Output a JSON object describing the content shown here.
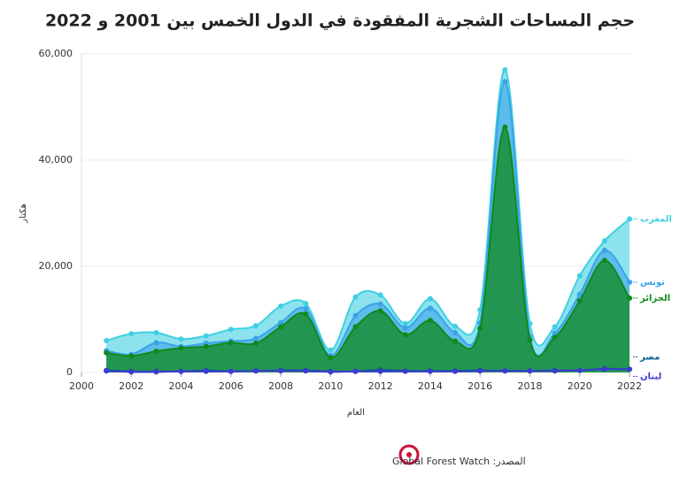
{
  "chart_data": {
    "type": "area",
    "title": "حجم المساحات الشجرية المفقودة في الدول الخمس بين 2001 و 2022",
    "y_label": "هكتار",
    "x_label": "العام",
    "source": "المصدر: Global Forest Watch",
    "x": [
      2001,
      2002,
      2003,
      2004,
      2005,
      2006,
      2007,
      2008,
      2009,
      2010,
      2011,
      2012,
      2013,
      2014,
      2015,
      2016,
      2017,
      2018,
      2019,
      2020,
      2021,
      2022
    ],
    "xlim": [
      2000,
      2022
    ],
    "xticks": [
      2000,
      2002,
      2004,
      2006,
      2008,
      2010,
      2012,
      2014,
      2016,
      2018,
      2020,
      2022
    ],
    "ylim": [
      0,
      60000
    ],
    "yticks": [
      0,
      {
        "value": 20000,
        "label": "20,000"
      },
      {
        "value": 40000,
        "label": "40,000"
      },
      {
        "value": 60000,
        "label": "60,000"
      }
    ],
    "series": [
      {
        "name": "المغرب",
        "color": "#3fd0e2",
        "fill": true,
        "values": [
          6000,
          7300,
          7500,
          6300,
          6900,
          8100,
          8800,
          12500,
          13000,
          4200,
          14200,
          14600,
          9200,
          13900,
          8700,
          11800,
          57000,
          9200,
          8600,
          18200,
          24800,
          28900
        ]
      },
      {
        "name": "تونس",
        "color": "#3aa3e8",
        "fill": true,
        "values": [
          4100,
          3400,
          5600,
          4900,
          5500,
          5900,
          6400,
          9400,
          12000,
          3200,
          10700,
          12900,
          8400,
          12100,
          7500,
          9300,
          54800,
          6800,
          7400,
          14700,
          23000,
          17000
        ]
      },
      {
        "name": "الجزائر",
        "color": "#0f8a1c",
        "fill": true,
        "values": [
          3700,
          3100,
          4000,
          4600,
          4900,
          5600,
          5500,
          8600,
          11000,
          2800,
          8600,
          11600,
          7100,
          9800,
          5900,
          8300,
          46200,
          6100,
          6600,
          13500,
          21100,
          14000
        ]
      },
      {
        "name": "مصر",
        "color": "#0b5d8c",
        "fill": false,
        "values": [
          400,
          200,
          200,
          200,
          400,
          200,
          300,
          400,
          400,
          200,
          200,
          500,
          300,
          300,
          300,
          400,
          300,
          300,
          400,
          400,
          700,
          600
        ]
      },
      {
        "name": "لبنان",
        "color": "#3b3bd1",
        "fill": false,
        "values": [
          300,
          100,
          100,
          200,
          200,
          200,
          300,
          300,
          300,
          100,
          200,
          200,
          200,
          200,
          200,
          300,
          300,
          300,
          300,
          400,
          600,
          600
        ]
      }
    ]
  }
}
